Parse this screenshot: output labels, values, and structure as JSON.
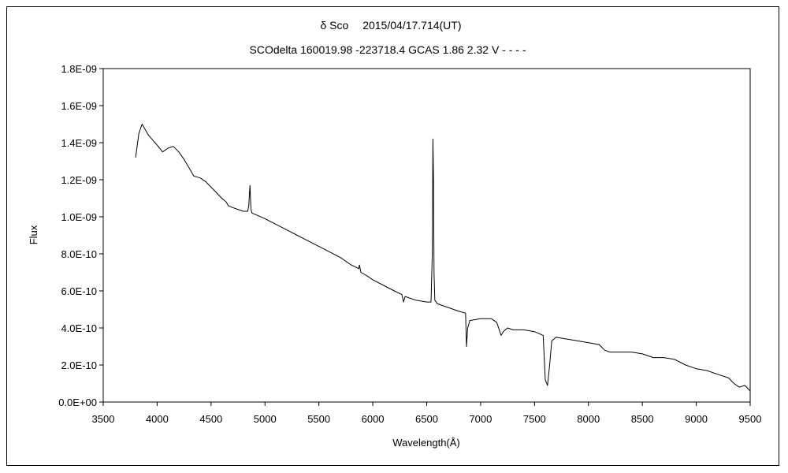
{
  "chart_data": {
    "type": "line",
    "title": "δ Sco　 2015/04/17.714(UT)",
    "subtitle": "SCOdelta 160019.98 -223718.4 GCAS 1.86 2.32 V - - - -",
    "xlabel": "Wavelength(Å)",
    "ylabel": "Flux",
    "xlim": [
      3500,
      9500
    ],
    "ylim": [
      0,
      1.8e-09
    ],
    "xticks": [
      "3500",
      "4000",
      "4500",
      "5000",
      "5500",
      "6000",
      "6500",
      "7000",
      "7500",
      "8000",
      "8500",
      "9000",
      "9500"
    ],
    "yticks": [
      "0.0E+00",
      "2.0E-10",
      "4.0E-10",
      "6.0E-10",
      "8.0E-10",
      "1.0E-09",
      "1.2E-09",
      "1.4E-09",
      "1.6E-09",
      "1.8E-09"
    ],
    "grid": false,
    "series": [
      {
        "color": "#000000",
        "x": [
          3800,
          3830,
          3860,
          3890,
          3920,
          3950,
          3980,
          4010,
          4050,
          4100,
          4150,
          4200,
          4250,
          4300,
          4340,
          4400,
          4450,
          4500,
          4550,
          4600,
          4640,
          4660,
          4700,
          4750,
          4800,
          4840,
          4850,
          4861,
          4870,
          4880,
          4920,
          5000,
          5100,
          5200,
          5300,
          5400,
          5500,
          5600,
          5700,
          5800,
          5870,
          5876,
          5890,
          5950,
          6000,
          6100,
          6200,
          6270,
          6285,
          6300,
          6400,
          6500,
          6540,
          6552,
          6558,
          6563,
          6568,
          6575,
          6600,
          6700,
          6800,
          6860,
          6869,
          6880,
          6900,
          7000,
          7100,
          7150,
          7190,
          7210,
          7250,
          7300,
          7400,
          7500,
          7580,
          7600,
          7620,
          7640,
          7660,
          7700,
          7800,
          7900,
          8000,
          8100,
          8150,
          8200,
          8300,
          8400,
          8500,
          8600,
          8700,
          8800,
          8900,
          9000,
          9100,
          9200,
          9300,
          9350,
          9400,
          9450,
          9500
        ],
        "y": [
          1.32e-09,
          1.45e-09,
          1.5e-09,
          1.47e-09,
          1.44e-09,
          1.42e-09,
          1.4e-09,
          1.38e-09,
          1.35e-09,
          1.37e-09,
          1.38e-09,
          1.35e-09,
          1.31e-09,
          1.26e-09,
          1.22e-09,
          1.21e-09,
          1.19e-09,
          1.16e-09,
          1.13e-09,
          1.1e-09,
          1.08e-09,
          1.06e-09,
          1.05e-09,
          1.04e-09,
          1.03e-09,
          1.03e-09,
          1.06e-09,
          1.17e-09,
          1.04e-09,
          1.02e-09,
          1.01e-09,
          9.9e-10,
          9.6e-10,
          9.3e-10,
          9e-10,
          8.7e-10,
          8.4e-10,
          8.1e-10,
          7.8e-10,
          7.4e-10,
          7.2e-10,
          7.4e-10,
          7e-10,
          6.8e-10,
          6.6e-10,
          6.3e-10,
          6e-10,
          5.8e-10,
          5.4e-10,
          5.7e-10,
          5.5e-10,
          5.4e-10,
          5.4e-10,
          8e-10,
          1.42e-09,
          1.2e-09,
          7e-10,
          5.5e-10,
          5.3e-10,
          5.1e-10,
          4.9e-10,
          4.8e-10,
          3e-10,
          4e-10,
          4.4e-10,
          4.5e-10,
          4.5e-10,
          4.3e-10,
          3.6e-10,
          3.8e-10,
          4e-10,
          3.9e-10,
          3.9e-10,
          3.8e-10,
          3.6e-10,
          1.2e-10,
          9e-11,
          2e-10,
          3.3e-10,
          3.5e-10,
          3.4e-10,
          3.3e-10,
          3.2e-10,
          3.1e-10,
          2.8e-10,
          2.7e-10,
          2.7e-10,
          2.7e-10,
          2.6e-10,
          2.4e-10,
          2.4e-10,
          2.3e-10,
          2e-10,
          1.8e-10,
          1.7e-10,
          1.5e-10,
          1.3e-10,
          1e-10,
          8e-11,
          9e-11,
          6e-11
        ]
      }
    ]
  }
}
